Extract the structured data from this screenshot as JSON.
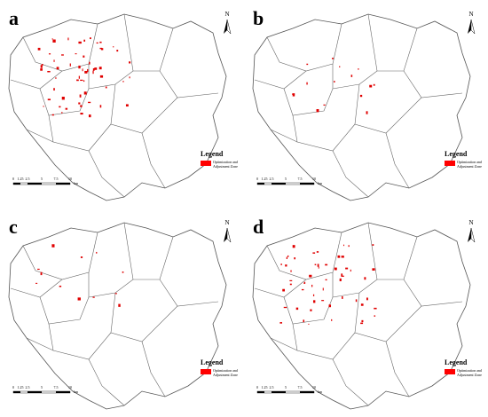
{
  "panels": [
    {
      "label": "a",
      "north": "N",
      "legend_title": "Legend",
      "legend_item": [
        "Optimization and",
        "Adjustment Zone"
      ],
      "scale_labels": [
        "0",
        "1.25",
        "2.5",
        "5",
        "7.5",
        "10"
      ],
      "scale_unit": "km"
    },
    {
      "label": "b",
      "north": "N",
      "legend_title": "Legend",
      "legend_item": [
        "Optimization and",
        "Adjustment Zone"
      ],
      "scale_labels": [
        "0",
        "1.25",
        "2.5",
        "5",
        "7.5",
        "10"
      ],
      "scale_unit": "km"
    },
    {
      "label": "c",
      "north": "N",
      "legend_title": "Legend",
      "legend_item": [
        "Optimization and",
        "Adjustment Zone"
      ],
      "scale_labels": [
        "0",
        "1.25",
        "2.5",
        "5",
        "7.5",
        "10"
      ],
      "scale_unit": "km"
    },
    {
      "label": "d",
      "north": "N",
      "legend_title": "Legend",
      "legend_item": [
        "Optimization and",
        "Adjustment Zone"
      ],
      "scale_labels": [
        "0",
        "1.25",
        "2.5",
        "5",
        "7.5",
        "10"
      ],
      "scale_unit": "km"
    }
  ]
}
